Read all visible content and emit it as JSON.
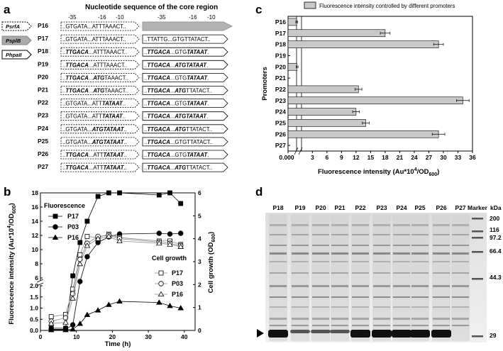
{
  "panels": {
    "a": {
      "label": "a",
      "title": "Nucleotide sequence of the core region",
      "promoter_labels": [
        "PsrfA",
        "PsplB",
        "PhpaII"
      ],
      "position_labels_left": [
        "-35",
        "-16",
        "-10"
      ],
      "position_labels_right": [
        "-35",
        "-16",
        "-10"
      ],
      "rows": [
        {
          "name": "P16",
          "left": [
            [
              "..GTGATA...",
              false
            ],
            [
              "ATTTAAACT..",
              false
            ]
          ],
          "right": []
        },
        {
          "name": "P17",
          "left": [
            [
              "..GTGATA...",
              false
            ],
            [
              "ATTTAAACT..",
              false
            ]
          ],
          "right": [
            [
              "..TTATTG...",
              false
            ],
            [
              "GTGTTATACT..",
              false
            ]
          ]
        },
        {
          "name": "P18",
          "left": [
            [
              "..",
              false
            ],
            [
              "TTGACA",
              true
            ],
            [
              "...ATTTAAACT..",
              false
            ]
          ],
          "right": [
            [
              "..",
              false
            ],
            [
              "TTGACA",
              true
            ],
            [
              "...GTG",
              false
            ],
            [
              "TATAAT",
              true
            ],
            [
              ".",
              false
            ]
          ]
        },
        {
          "name": "P19",
          "left": [
            [
              "..",
              false
            ],
            [
              "TTGACA",
              true
            ],
            [
              "...ATTTAAACT..",
              false
            ]
          ],
          "right": [
            [
              "..",
              false
            ],
            [
              "TTGACA",
              true
            ],
            [
              "...",
              false
            ],
            [
              "ATGTATAAT",
              true
            ],
            [
              ".",
              false
            ]
          ]
        },
        {
          "name": "P20",
          "left": [
            [
              "..",
              false
            ],
            [
              "TTGACA",
              true
            ],
            [
              "...",
              false
            ],
            [
              "ATG",
              true
            ],
            [
              "TAAACT..",
              false
            ]
          ],
          "right": [
            [
              "..",
              false
            ],
            [
              "TTGACA",
              true
            ],
            [
              "...GTG",
              false
            ],
            [
              "TATAAT",
              true
            ],
            [
              ".",
              false
            ]
          ]
        },
        {
          "name": "P21",
          "left": [
            [
              "..",
              false
            ],
            [
              "TTGACA",
              true
            ],
            [
              "...",
              false
            ],
            [
              "ATG",
              true
            ],
            [
              "TAAACT..",
              false
            ]
          ],
          "right": [
            [
              "..",
              false
            ],
            [
              "TTGACA",
              true
            ],
            [
              "...",
              false
            ],
            [
              "ATG",
              true
            ],
            [
              "TTATACT..",
              false
            ]
          ]
        },
        {
          "name": "P22",
          "left": [
            [
              "..GTGATA...ATT",
              false
            ],
            [
              "TATAAT",
              true
            ],
            [
              "..",
              false
            ]
          ],
          "right": [
            [
              "..",
              false
            ],
            [
              "TTGACA",
              true
            ],
            [
              "...GTG",
              false
            ],
            [
              "TATAAT",
              true
            ],
            [
              ".",
              false
            ]
          ]
        },
        {
          "name": "P23",
          "left": [
            [
              "..GTGATA...ATT",
              false
            ],
            [
              "TATAAT",
              true
            ],
            [
              "..",
              false
            ]
          ],
          "right": [
            [
              "..",
              false
            ],
            [
              "TTGACA",
              true
            ],
            [
              "...",
              false
            ],
            [
              "ATGTATAAT",
              true
            ],
            [
              ".",
              false
            ]
          ]
        },
        {
          "name": "P24",
          "left": [
            [
              "..GTGATA...",
              false
            ],
            [
              "ATGTATAAT",
              true
            ],
            [
              "..",
              false
            ]
          ],
          "right": [
            [
              "..",
              false
            ],
            [
              "TTGACA",
              true
            ],
            [
              "...",
              false
            ],
            [
              "ATG",
              true
            ],
            [
              "TTATACT..",
              false
            ]
          ]
        },
        {
          "name": "P25",
          "left": [
            [
              "..GTGATA...",
              false
            ],
            [
              "ATGTATAAT",
              true
            ],
            [
              "..",
              false
            ]
          ],
          "right": [
            [
              "..",
              false
            ],
            [
              "TTGACA",
              true
            ],
            [
              "...GTGTTATACT..",
              false
            ]
          ]
        },
        {
          "name": "P26",
          "left": [
            [
              "..",
              false
            ],
            [
              "TTGACA",
              true
            ],
            [
              "...ATT",
              false
            ],
            [
              "TATAAT",
              true
            ],
            [
              "..",
              false
            ]
          ],
          "right": [
            [
              "..",
              false
            ],
            [
              "TTGACA",
              true
            ],
            [
              "...GTG",
              false
            ],
            [
              "TATAAT",
              true
            ],
            [
              ".",
              false
            ]
          ]
        },
        {
          "name": "P27",
          "left": [
            [
              "..",
              false
            ],
            [
              "TTGACA",
              true
            ],
            [
              "...ATT",
              false
            ],
            [
              "TATAAT",
              true
            ],
            [
              "..",
              false
            ]
          ],
          "right": [
            [
              "..",
              false
            ],
            [
              "TTGACA",
              true
            ],
            [
              "...",
              false
            ],
            [
              "ATG",
              true
            ],
            [
              "TTATACT..",
              false
            ]
          ]
        }
      ]
    },
    "b": {
      "label": "b"
    },
    "c": {
      "label": "c"
    },
    "d": {
      "label": "d",
      "lanes": [
        "P18",
        "P19",
        "P20",
        "P21",
        "P22",
        "P23",
        "P24",
        "P25",
        "P26",
        "P27",
        "Marker"
      ],
      "kda_label": "kDa",
      "markers": [
        "200",
        "116",
        "97.2",
        "66.4",
        "44.3",
        "29"
      ]
    }
  },
  "chart_data": [
    {
      "type": "bar",
      "orientation": "horizontal",
      "title": "Fluorescence intensity controlled by different promoters",
      "xlabel": "Fluorescence intensity (Au*10^4/OD600)",
      "xlabel_parts": {
        "main": "Fluorescence intensity (Au*10",
        "sup": "4",
        "mid": "/OD",
        "sub": "600",
        "end": ")"
      },
      "ylabel": "Promoters",
      "categories": [
        "P16",
        "P17",
        "P18",
        "P19",
        "P20",
        "P21",
        "P22",
        "P23",
        "P24",
        "P25",
        "P26",
        "P27"
      ],
      "values": [
        1.0,
        18.0,
        29.0,
        0.0,
        1.1,
        0.0,
        12.5,
        34.0,
        12.0,
        14.0,
        29.0,
        0.0
      ],
      "errors": [
        0.2,
        1.0,
        1.0,
        0,
        0.2,
        0,
        0.7,
        1.3,
        0.7,
        0.7,
        1.3,
        0
      ],
      "ticks": [
        "0.000",
        "3",
        "6",
        "9",
        "12",
        "15",
        "18",
        "21",
        "24",
        "27",
        "30",
        "33",
        "36"
      ],
      "xlim": [
        0,
        36
      ],
      "axis_break": true
    },
    {
      "type": "line",
      "xlabel": "Time (h)",
      "ylabel_left": "Fluorescence intensity (Au*10^4/OD600)",
      "ylabel_left_parts": {
        "main": "Fluorescence intensity (Au*10",
        "sup": "4",
        "mid": "/OD",
        "sub": "600",
        "end": ")"
      },
      "ylabel_right": "Cell growth (OD600)",
      "ylabel_right_parts": {
        "main": "Cell growth (OD",
        "sub": "600",
        "end": ")"
      },
      "legend_fluorescence_title": "Fluorescence",
      "legend_growth_title": "Cell growth",
      "x_ticks": [
        "0",
        "10",
        "20",
        "30",
        "40"
      ],
      "y_left_ticks_low": [
        "0.0",
        "0.5",
        "1.0",
        "1.5",
        "2.0"
      ],
      "y_left_ticks_high": [
        "6",
        "8",
        "10",
        "12",
        "14",
        "16",
        "18"
      ],
      "y_right_ticks": [
        "0",
        "1",
        "2",
        "3",
        "4",
        "5",
        "6"
      ],
      "xlim": [
        0,
        43
      ],
      "ylim_right": [
        0,
        6
      ],
      "axis_break_left": true,
      "series": [
        {
          "name": "P17",
          "group": "fluorescence",
          "marker": "square-filled",
          "x": [
            3,
            7,
            9,
            11,
            13,
            16,
            19,
            22,
            33,
            36,
            39
          ],
          "y": [
            0.1,
            0.1,
            6.3,
            11.0,
            14.0,
            17.5,
            18.0,
            18.0,
            17.7,
            18.0,
            16.5
          ]
        },
        {
          "name": "P03",
          "group": "fluorescence",
          "marker": "circle-filled",
          "x": [
            3,
            7,
            9,
            11,
            13,
            16,
            19,
            22,
            33,
            36,
            39
          ],
          "y": [
            0.05,
            0.05,
            0.25,
            5.5,
            9.0,
            11.0,
            11.8,
            12.2,
            12.3,
            12.2,
            12.3
          ]
        },
        {
          "name": "P16",
          "group": "fluorescence",
          "marker": "triangle-filled",
          "x": [
            3,
            7,
            9,
            11,
            13,
            16,
            19,
            22,
            33,
            36,
            39
          ],
          "y": [
            0.02,
            0.02,
            0.05,
            0.3,
            0.7,
            0.9,
            1.15,
            1.3,
            1.25,
            1.1,
            1.0
          ]
        },
        {
          "name": "P17",
          "group": "growth",
          "marker": "square-open",
          "x": [
            3,
            7,
            9,
            11,
            13,
            16,
            19,
            22,
            33,
            36,
            39
          ],
          "y": [
            0.6,
            0.7,
            1.8,
            3.3,
            4.1,
            4.05,
            4.2,
            4.05,
            3.9,
            3.9,
            3.75
          ]
        },
        {
          "name": "P03",
          "group": "growth",
          "marker": "circle-open",
          "x": [
            3,
            7,
            9,
            11,
            13,
            16,
            19,
            22,
            33,
            36,
            39
          ],
          "y": [
            0.4,
            0.55,
            1.6,
            3.1,
            3.8,
            4.1,
            4.15,
            4.0,
            3.85,
            3.8,
            3.7
          ]
        },
        {
          "name": "P16",
          "group": "growth",
          "marker": "triangle-open",
          "x": [
            3,
            7,
            9,
            11,
            13,
            16,
            19,
            22,
            33,
            36,
            39
          ],
          "y": [
            0.3,
            0.35,
            1.4,
            2.9,
            3.7,
            4.0,
            4.1,
            3.9,
            3.8,
            3.75,
            3.65
          ]
        }
      ]
    }
  ]
}
